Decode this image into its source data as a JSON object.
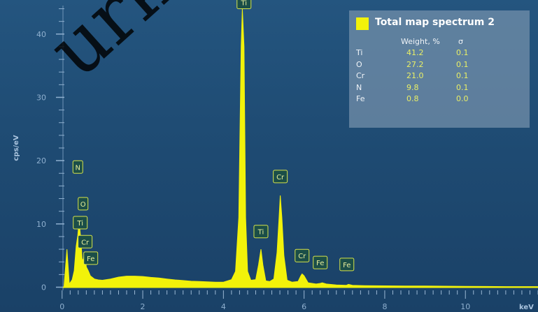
{
  "chart_data": {
    "type": "area",
    "title": "",
    "xlabel": "keV",
    "ylabel": "cps/eV",
    "xlim": [
      -0.1,
      11.8
    ],
    "ylim": [
      -0.5,
      44.5
    ],
    "x_ticks": [
      0,
      2,
      4,
      6,
      8,
      10
    ],
    "y_ticks": [
      0,
      10,
      20,
      30,
      40
    ],
    "series": [
      {
        "color": "#f2f20a",
        "x": [
          0.05,
          0.12,
          0.18,
          0.25,
          0.3,
          0.35,
          0.39,
          0.42,
          0.46,
          0.5,
          0.53,
          0.56,
          0.6,
          0.65,
          0.7,
          0.8,
          0.9,
          1.0,
          1.2,
          1.4,
          1.6,
          1.8,
          2.0,
          2.2,
          2.4,
          2.6,
          2.8,
          3.0,
          3.2,
          3.4,
          3.6,
          3.8,
          4.0,
          4.2,
          4.3,
          4.38,
          4.44,
          4.47,
          4.51,
          4.55,
          4.6,
          4.68,
          4.8,
          4.87,
          4.93,
          4.98,
          5.05,
          5.15,
          5.25,
          5.33,
          5.38,
          5.41,
          5.45,
          5.5,
          5.58,
          5.7,
          5.85,
          5.92,
          5.95,
          6.0,
          6.1,
          6.3,
          6.4,
          6.45,
          6.55,
          6.8,
          7.05,
          7.1,
          7.2,
          7.5,
          8.0,
          8.5,
          9.0,
          9.5,
          10.0,
          10.5,
          11.0,
          11.5,
          11.8
        ],
        "y": [
          0.3,
          6,
          0.5,
          1.2,
          2.6,
          6.5,
          8.2,
          10.5,
          7.8,
          4.2,
          4.5,
          5.6,
          3.2,
          2.6,
          1.8,
          1.3,
          1.15,
          1.1,
          1.3,
          1.6,
          1.75,
          1.75,
          1.7,
          1.55,
          1.45,
          1.3,
          1.15,
          1.05,
          0.95,
          0.9,
          0.85,
          0.8,
          0.8,
          1.2,
          2.5,
          11,
          38,
          44,
          38,
          11,
          2.5,
          1.1,
          1.2,
          3.5,
          6,
          3.5,
          1.0,
          0.9,
          1.3,
          5.5,
          11,
          14.5,
          11,
          5,
          1.1,
          0.8,
          0.9,
          1.8,
          2.1,
          1.8,
          0.7,
          0.5,
          0.6,
          0.7,
          0.5,
          0.35,
          0.3,
          0.45,
          0.3,
          0.25,
          0.22,
          0.2,
          0.18,
          0.16,
          0.14,
          0.12,
          0.1,
          0.1,
          0.1
        ]
      }
    ],
    "peak_labels": [
      {
        "label": "Ti",
        "x": 4.51,
        "y": 44
      },
      {
        "label": "N",
        "x": 0.39,
        "y": 18
      },
      {
        "label": "O",
        "x": 0.52,
        "y": 12.2
      },
      {
        "label": "Ti",
        "x": 0.45,
        "y": 9.2
      },
      {
        "label": "Cr",
        "x": 0.57,
        "y": 6.2
      },
      {
        "label": "Fe",
        "x": 0.71,
        "y": 3.6
      },
      {
        "label": "Cr",
        "x": 5.41,
        "y": 16.5
      },
      {
        "label": "Ti",
        "x": 4.93,
        "y": 7.8
      },
      {
        "label": "Cr",
        "x": 5.95,
        "y": 4.0
      },
      {
        "label": "Fe",
        "x": 6.4,
        "y": 2.9
      },
      {
        "label": "Fe",
        "x": 7.06,
        "y": 2.6
      }
    ]
  },
  "legend": {
    "title": "Total map spectrum 2",
    "columns": [
      "Weight, %",
      "σ"
    ],
    "rows": [
      {
        "element": "Ti",
        "weight": "41.2",
        "sigma": "0.1"
      },
      {
        "element": "O",
        "weight": "27.2",
        "sigma": "0.1"
      },
      {
        "element": "Cr",
        "weight": "21.0",
        "sigma": "0.1"
      },
      {
        "element": "N",
        "weight": "9.8",
        "sigma": "0.1"
      },
      {
        "element": "Fe",
        "weight": "0.8",
        "sigma": "0.0"
      }
    ]
  },
  "watermark": "urketov",
  "colors": {
    "background": "#1f4c74",
    "spectrum": "#f2f20a",
    "axis": "#8fb0cf",
    "label_box": "#1b4e48"
  }
}
